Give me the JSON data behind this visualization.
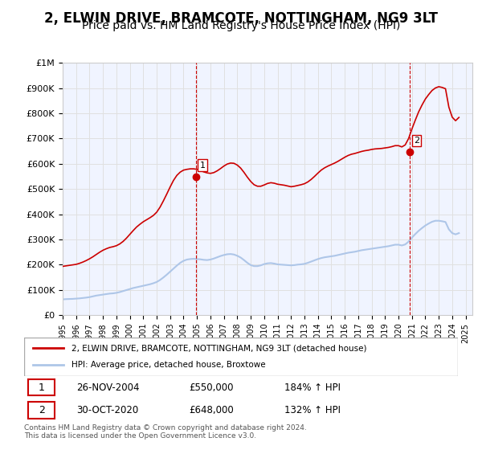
{
  "title": "2, ELWIN DRIVE, BRAMCOTE, NOTTINGHAM, NG9 3LT",
  "subtitle": "Price paid vs. HM Land Registry's House Price Index (HPI)",
  "title_fontsize": 12,
  "subtitle_fontsize": 10,
  "ylabel_ticks": [
    "£0",
    "£100K",
    "£200K",
    "£300K",
    "£400K",
    "£500K",
    "£600K",
    "£700K",
    "£800K",
    "£900K",
    "£1M"
  ],
  "ytick_values": [
    0,
    100000,
    200000,
    300000,
    400000,
    500000,
    600000,
    700000,
    800000,
    900000,
    1000000
  ],
  "ylim": [
    0,
    1000000
  ],
  "xlim_start": 1995.0,
  "xlim_end": 2025.5,
  "xtick_years": [
    1995,
    1996,
    1997,
    1998,
    1999,
    2000,
    2001,
    2002,
    2003,
    2004,
    2005,
    2006,
    2007,
    2008,
    2009,
    2010,
    2011,
    2012,
    2013,
    2014,
    2015,
    2016,
    2017,
    2018,
    2019,
    2020,
    2021,
    2022,
    2023,
    2024,
    2025
  ],
  "hpi_color": "#aec6e8",
  "price_color": "#cc0000",
  "marker_color": "#cc0000",
  "vline_color": "#cc0000",
  "grid_color": "#e0e0e0",
  "bg_color": "#f0f4ff",
  "plot_bg": "#f0f4ff",
  "legend_label_red": "2, ELWIN DRIVE, BRAMCOTE, NOTTINGHAM, NG9 3LT (detached house)",
  "legend_label_blue": "HPI: Average price, detached house, Broxtowe",
  "sale1_label": "1",
  "sale1_date": "26-NOV-2004",
  "sale1_price": "£550,000",
  "sale1_pct": "184% ↑ HPI",
  "sale1_year": 2004.9,
  "sale1_value": 550000,
  "sale2_label": "2",
  "sale2_date": "30-OCT-2020",
  "sale2_price": "£648,000",
  "sale2_pct": "132% ↑ HPI",
  "sale2_year": 2020.83,
  "sale2_value": 648000,
  "footnote": "Contains HM Land Registry data © Crown copyright and database right 2024.\nThis data is licensed under the Open Government Licence v3.0.",
  "hpi_data": {
    "years": [
      1995.0,
      1995.25,
      1995.5,
      1995.75,
      1996.0,
      1996.25,
      1996.5,
      1996.75,
      1997.0,
      1997.25,
      1997.5,
      1997.75,
      1998.0,
      1998.25,
      1998.5,
      1998.75,
      1999.0,
      1999.25,
      1999.5,
      1999.75,
      2000.0,
      2000.25,
      2000.5,
      2000.75,
      2001.0,
      2001.25,
      2001.5,
      2001.75,
      2002.0,
      2002.25,
      2002.5,
      2002.75,
      2003.0,
      2003.25,
      2003.5,
      2003.75,
      2004.0,
      2004.25,
      2004.5,
      2004.75,
      2005.0,
      2005.25,
      2005.5,
      2005.75,
      2006.0,
      2006.25,
      2006.5,
      2006.75,
      2007.0,
      2007.25,
      2007.5,
      2007.75,
      2008.0,
      2008.25,
      2008.5,
      2008.75,
      2009.0,
      2009.25,
      2009.5,
      2009.75,
      2010.0,
      2010.25,
      2010.5,
      2010.75,
      2011.0,
      2011.25,
      2011.5,
      2011.75,
      2012.0,
      2012.25,
      2012.5,
      2012.75,
      2013.0,
      2013.25,
      2013.5,
      2013.75,
      2014.0,
      2014.25,
      2014.5,
      2014.75,
      2015.0,
      2015.25,
      2015.5,
      2015.75,
      2016.0,
      2016.25,
      2016.5,
      2016.75,
      2017.0,
      2017.25,
      2017.5,
      2017.75,
      2018.0,
      2018.25,
      2018.5,
      2018.75,
      2019.0,
      2019.25,
      2019.5,
      2019.75,
      2020.0,
      2020.25,
      2020.5,
      2020.75,
      2021.0,
      2021.25,
      2021.5,
      2021.75,
      2022.0,
      2022.25,
      2022.5,
      2022.75,
      2023.0,
      2023.25,
      2023.5,
      2023.75,
      2024.0,
      2024.25,
      2024.5
    ],
    "values": [
      62000,
      63000,
      63500,
      64000,
      65000,
      66000,
      67500,
      69000,
      71000,
      74000,
      77000,
      79000,
      81000,
      83000,
      85000,
      86000,
      88000,
      91000,
      95000,
      99000,
      103000,
      107000,
      110000,
      113000,
      116000,
      119000,
      122000,
      126000,
      131000,
      139000,
      149000,
      160000,
      172000,
      184000,
      196000,
      207000,
      215000,
      220000,
      222000,
      223000,
      222000,
      221000,
      219000,
      218000,
      220000,
      224000,
      229000,
      234000,
      238000,
      241000,
      242000,
      240000,
      235000,
      228000,
      218000,
      207000,
      198000,
      194000,
      194000,
      197000,
      202000,
      205000,
      206000,
      204000,
      201000,
      200000,
      199000,
      198000,
      197000,
      198000,
      200000,
      201000,
      203000,
      207000,
      212000,
      217000,
      222000,
      226000,
      229000,
      231000,
      233000,
      235000,
      238000,
      241000,
      244000,
      247000,
      249000,
      251000,
      254000,
      257000,
      259000,
      261000,
      263000,
      265000,
      267000,
      269000,
      271000,
      273000,
      276000,
      279000,
      279000,
      276000,
      280000,
      291000,
      307000,
      321000,
      334000,
      345000,
      355000,
      363000,
      370000,
      374000,
      374000,
      372000,
      369000,
      340000,
      325000,
      320000,
      325000
    ]
  },
  "price_data": {
    "years": [
      1995.0,
      1995.25,
      1995.5,
      1995.75,
      1996.0,
      1996.25,
      1996.5,
      1996.75,
      1997.0,
      1997.25,
      1997.5,
      1997.75,
      1998.0,
      1998.25,
      1998.5,
      1998.75,
      1999.0,
      1999.25,
      1999.5,
      1999.75,
      2000.0,
      2000.25,
      2000.5,
      2000.75,
      2001.0,
      2001.25,
      2001.5,
      2001.75,
      2002.0,
      2002.25,
      2002.5,
      2002.75,
      2003.0,
      2003.25,
      2003.5,
      2003.75,
      2004.0,
      2004.25,
      2004.5,
      2004.75,
      2005.0,
      2005.25,
      2005.5,
      2005.75,
      2006.0,
      2006.25,
      2006.5,
      2006.75,
      2007.0,
      2007.25,
      2007.5,
      2007.75,
      2008.0,
      2008.25,
      2008.5,
      2008.75,
      2009.0,
      2009.25,
      2009.5,
      2009.75,
      2010.0,
      2010.25,
      2010.5,
      2010.75,
      2011.0,
      2011.25,
      2011.5,
      2011.75,
      2012.0,
      2012.25,
      2012.5,
      2012.75,
      2013.0,
      2013.25,
      2013.5,
      2013.75,
      2014.0,
      2014.25,
      2014.5,
      2014.75,
      2015.0,
      2015.25,
      2015.5,
      2015.75,
      2016.0,
      2016.25,
      2016.5,
      2016.75,
      2017.0,
      2017.25,
      2017.5,
      2017.75,
      2018.0,
      2018.25,
      2018.5,
      2018.75,
      2019.0,
      2019.25,
      2019.5,
      2019.75,
      2020.0,
      2020.25,
      2020.5,
      2020.75,
      2021.0,
      2021.25,
      2021.5,
      2021.75,
      2022.0,
      2022.25,
      2022.5,
      2022.75,
      2023.0,
      2023.25,
      2023.5,
      2023.75,
      2024.0,
      2024.25,
      2024.5
    ],
    "values": [
      193000,
      195000,
      197000,
      199000,
      201000,
      205000,
      210000,
      216000,
      223000,
      231000,
      240000,
      249000,
      257000,
      263000,
      268000,
      271000,
      275000,
      282000,
      292000,
      305000,
      320000,
      335000,
      349000,
      360000,
      370000,
      378000,
      386000,
      395000,
      408000,
      428000,
      453000,
      480000,
      508000,
      534000,
      554000,
      567000,
      575000,
      578000,
      580000,
      580000,
      578000,
      574000,
      568000,
      564000,
      562000,
      565000,
      572000,
      581000,
      591000,
      599000,
      603000,
      602000,
      595000,
      583000,
      566000,
      547000,
      530000,
      517000,
      511000,
      511000,
      516000,
      522000,
      525000,
      523000,
      519000,
      517000,
      515000,
      512000,
      509000,
      511000,
      514000,
      517000,
      521000,
      528000,
      538000,
      550000,
      563000,
      575000,
      584000,
      591000,
      597000,
      603000,
      610000,
      618000,
      626000,
      633000,
      638000,
      641000,
      645000,
      649000,
      652000,
      654000,
      657000,
      659000,
      660000,
      661000,
      663000,
      665000,
      668000,
      672000,
      672000,
      667000,
      675000,
      700000,
      738000,
      773000,
      806000,
      833000,
      857000,
      875000,
      891000,
      901000,
      906000,
      903000,
      898000,
      825000,
      785000,
      771000,
      784000
    ]
  }
}
